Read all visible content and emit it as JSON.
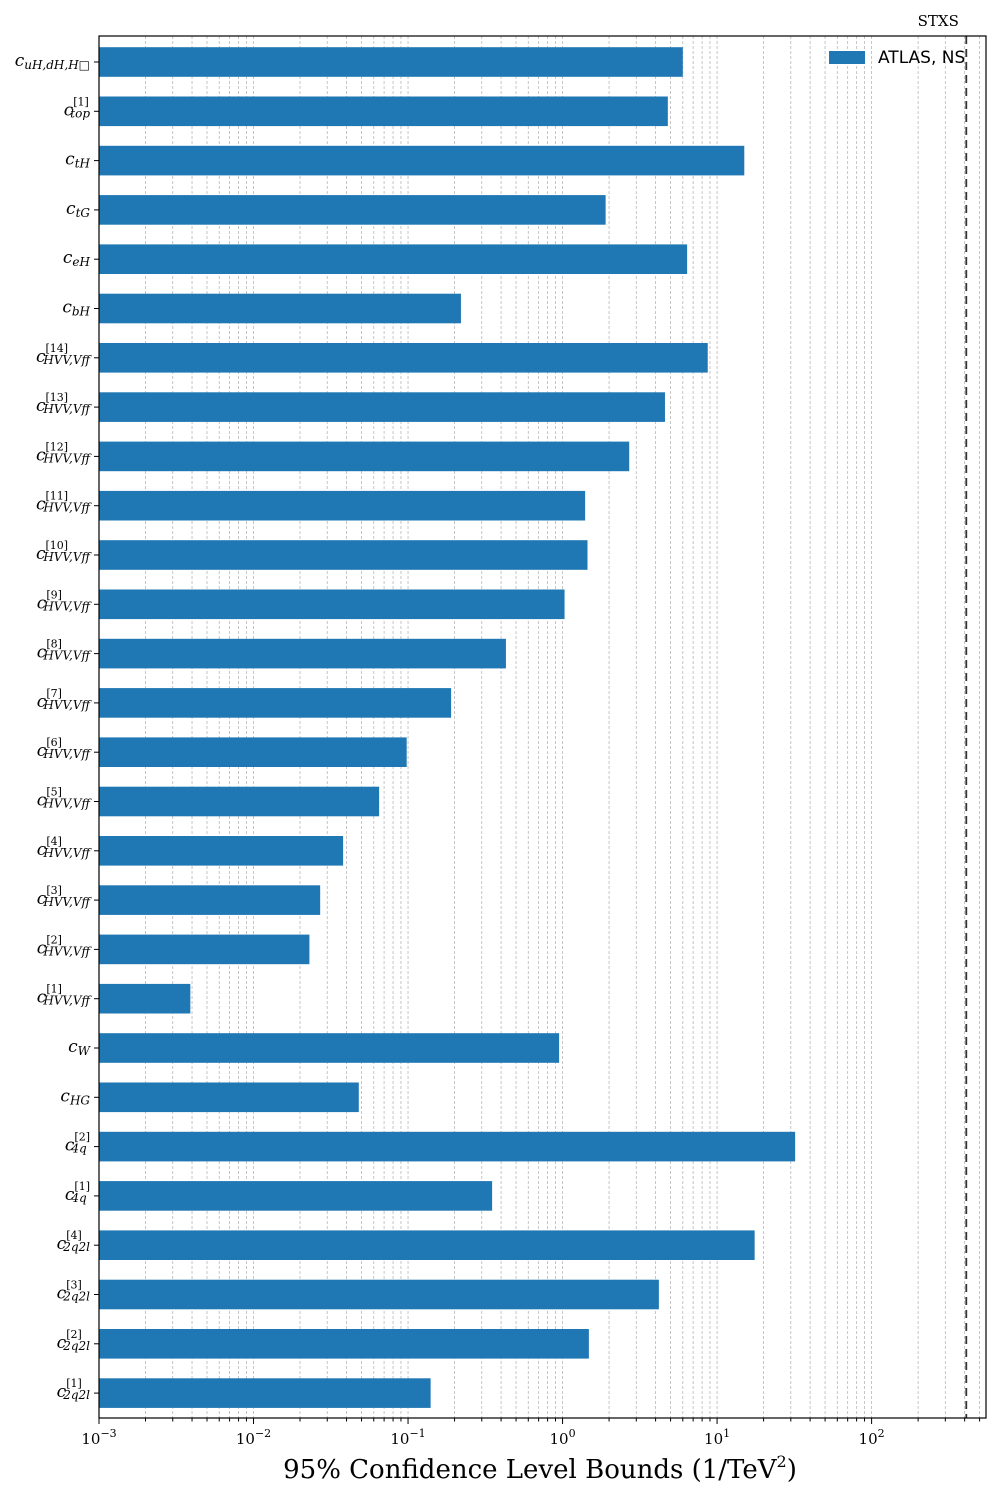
{
  "chart_data": {
    "type": "bar",
    "orientation": "horizontal",
    "xscale": "log",
    "xlim": [
      0.001,
      550
    ],
    "xlabel": "95% Confidence Level Bounds (1/TeV²)",
    "xticks": [
      {
        "value": 0.001,
        "base": "10",
        "exp": "−3"
      },
      {
        "value": 0.01,
        "base": "10",
        "exp": "−2"
      },
      {
        "value": 0.1,
        "base": "10",
        "exp": "−1"
      },
      {
        "value": 1,
        "base": "10",
        "exp": "0"
      },
      {
        "value": 10,
        "base": "10",
        "exp": "1"
      },
      {
        "value": 100,
        "base": "10",
        "exp": "2"
      }
    ],
    "grid": "vertical minor and major, dashed",
    "series": [
      {
        "name": "ATLAS, NS",
        "color": "#1f77b4"
      }
    ],
    "legend_position": "top-right",
    "reference_line": {
      "value": 410,
      "label": "STXS",
      "style": "dashed"
    },
    "categories": [
      {
        "base": "c",
        "sub": "uH,dH,H□",
        "sup": "",
        "value": 6.0
      },
      {
        "base": "c",
        "sub": "top",
        "sup": "[1]",
        "value": 4.8
      },
      {
        "base": "c",
        "sub": "tH",
        "sup": "",
        "value": 15.0
      },
      {
        "base": "c",
        "sub": "tG",
        "sup": "",
        "value": 1.9
      },
      {
        "base": "c",
        "sub": "eH",
        "sup": "",
        "value": 6.4
      },
      {
        "base": "c",
        "sub": "bH",
        "sup": "",
        "value": 0.22
      },
      {
        "base": "c",
        "sub": "HVV,Vff",
        "sup": "[14]",
        "value": 8.7
      },
      {
        "base": "c",
        "sub": "HVV,Vff",
        "sup": "[13]",
        "value": 4.6
      },
      {
        "base": "c",
        "sub": "HVV,Vff",
        "sup": "[12]",
        "value": 2.7
      },
      {
        "base": "c",
        "sub": "HVV,Vff",
        "sup": "[11]",
        "value": 1.4
      },
      {
        "base": "c",
        "sub": "HVV,Vff",
        "sup": "[10]",
        "value": 1.45
      },
      {
        "base": "c",
        "sub": "HVV,Vff",
        "sup": "[9]",
        "value": 1.03
      },
      {
        "base": "c",
        "sub": "HVV,Vff",
        "sup": "[8]",
        "value": 0.43
      },
      {
        "base": "c",
        "sub": "HVV,Vff",
        "sup": "[7]",
        "value": 0.19
      },
      {
        "base": "c",
        "sub": "HVV,Vff",
        "sup": "[6]",
        "value": 0.098
      },
      {
        "base": "c",
        "sub": "HVV,Vff",
        "sup": "[5]",
        "value": 0.065
      },
      {
        "base": "c",
        "sub": "HVV,Vff",
        "sup": "[4]",
        "value": 0.038
      },
      {
        "base": "c",
        "sub": "HVV,Vff",
        "sup": "[3]",
        "value": 0.027
      },
      {
        "base": "c",
        "sub": "HVV,Vff",
        "sup": "[2]",
        "value": 0.023
      },
      {
        "base": "c",
        "sub": "HVV,Vff",
        "sup": "[1]",
        "value": 0.0039
      },
      {
        "base": "c",
        "sub": "W",
        "sup": "",
        "value": 0.95
      },
      {
        "base": "c",
        "sub": "HG",
        "sup": "",
        "value": 0.048
      },
      {
        "base": "c",
        "sub": "4q",
        "sup": "[2]",
        "value": 32.0
      },
      {
        "base": "c",
        "sub": "4q",
        "sup": "[1]",
        "value": 0.35
      },
      {
        "base": "c",
        "sub": "2q2l",
        "sup": "[4]",
        "value": 17.5
      },
      {
        "base": "c",
        "sub": "2q2l",
        "sup": "[3]",
        "value": 4.2
      },
      {
        "base": "c",
        "sub": "2q2l",
        "sup": "[2]",
        "value": 1.48
      },
      {
        "base": "c",
        "sub": "2q2l",
        "sup": "[1]",
        "value": 0.14
      }
    ]
  }
}
